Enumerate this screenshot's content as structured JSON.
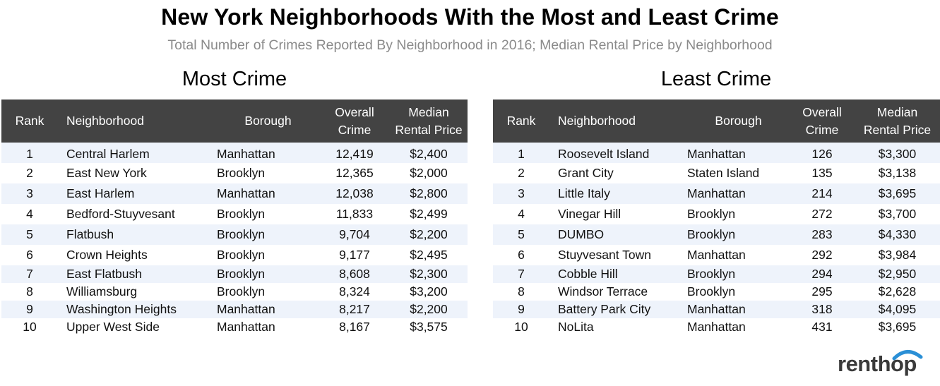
{
  "title": "New York Neighborhoods With the Most and Least Crime",
  "subtitle": "Total Number of Crimes Reported By Neighborhood in 2016; Median Rental Price by Neighborhood",
  "logo_text": "renthop",
  "colors": {
    "header_bg": "#434343",
    "row_alt": "#eef3fb",
    "subtitle": "#8a8a8a",
    "logo_arc": "#2a8fd6"
  },
  "chart_data": [
    {
      "type": "table",
      "title": "Most Crime",
      "columns": [
        "Rank",
        "Neighborhood",
        "Borough",
        "Overall Crime",
        "Median Rental Price"
      ],
      "header_lines": [
        [
          "Rank"
        ],
        [
          "Neighborhood"
        ],
        [
          "Borough"
        ],
        [
          "Overall",
          "Crime"
        ],
        [
          "Median",
          "Rental Price"
        ]
      ],
      "rows": [
        [
          "1",
          "Central Harlem",
          "Manhattan",
          "12,419",
          "$2,400"
        ],
        [
          "2",
          "East New York",
          "Brooklyn",
          "12,365",
          "$2,000"
        ],
        [
          "3",
          "East Harlem",
          "Manhattan",
          "12,038",
          "$2,800"
        ],
        [
          "4",
          "Bedford-Stuyvesant",
          "Brooklyn",
          "11,833",
          "$2,499"
        ],
        [
          "5",
          "Flatbush",
          "Brooklyn",
          "9,704",
          "$2,200"
        ],
        [
          "6",
          "Crown Heights",
          "Brooklyn",
          "9,177",
          "$2,495"
        ],
        [
          "7",
          "East Flatbush",
          "Brooklyn",
          "8,608",
          "$2,300"
        ],
        [
          "8",
          "Williamsburg",
          "Brooklyn",
          "8,324",
          "$3,200"
        ],
        [
          "9",
          "Washington Heights",
          "Manhattan",
          "8,217",
          "$2,200"
        ],
        [
          "10",
          "Upper West Side",
          "Manhattan",
          "8,167",
          "$3,575"
        ]
      ]
    },
    {
      "type": "table",
      "title": "Least Crime",
      "columns": [
        "Rank",
        "Neighborhood",
        "Borough",
        "Overall Crime",
        "Median Rental Price"
      ],
      "header_lines": [
        [
          "Rank"
        ],
        [
          "Neighborhood"
        ],
        [
          "Borough"
        ],
        [
          "Overall",
          "Crime"
        ],
        [
          "Median",
          "Rental Price"
        ]
      ],
      "rows": [
        [
          "1",
          "Roosevelt Island",
          "Manhattan",
          "126",
          "$3,300"
        ],
        [
          "2",
          "Grant City",
          "Staten Island",
          "135",
          "$3,138"
        ],
        [
          "3",
          "Little Italy",
          "Manhattan",
          "214",
          "$3,695"
        ],
        [
          "4",
          "Vinegar Hill",
          "Brooklyn",
          "272",
          "$3,700"
        ],
        [
          "5",
          "DUMBO",
          "Brooklyn",
          "283",
          "$4,330"
        ],
        [
          "6",
          "Stuyvesant Town",
          "Manhattan",
          "292",
          "$3,984"
        ],
        [
          "7",
          "Cobble Hill",
          "Brooklyn",
          "294",
          "$2,950"
        ],
        [
          "8",
          "Windsor Terrace",
          "Brooklyn",
          "295",
          "$2,628"
        ],
        [
          "9",
          "Battery Park City",
          "Manhattan",
          "318",
          "$4,095"
        ],
        [
          "10",
          "NoLita",
          "Manhattan",
          "431",
          "$3,695"
        ]
      ]
    }
  ]
}
